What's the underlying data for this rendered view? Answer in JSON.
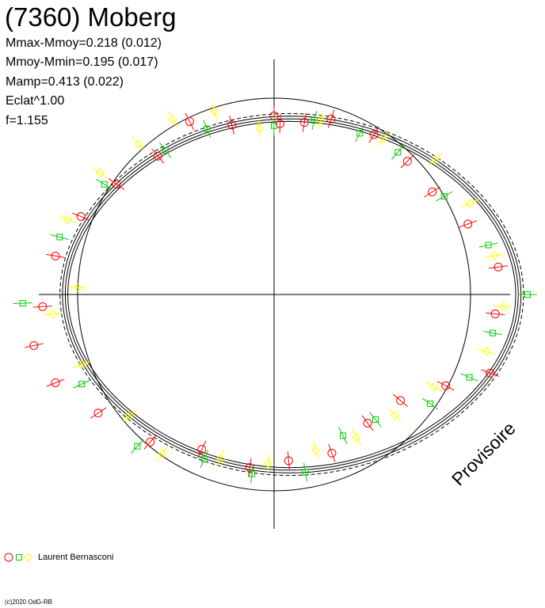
{
  "header": {
    "title": "(7360) Moberg",
    "stats": [
      "Mmax-Mmoy=0.218 (0.012)",
      "Mmoy-Mmin=0.195 (0.017)",
      "Mamp=0.413 (0.022)",
      "Eclat^1.00",
      "f=1.155"
    ]
  },
  "watermark": "Provisoire",
  "copyright": "(c)2020 OdG-RB",
  "legend": {
    "observer": "Laurent Bernasconi"
  },
  "colors": {
    "set1": "#ff0000",
    "set2": "#00cc00",
    "set3": "#ffff00",
    "model": "#000000",
    "axis": "#000000"
  },
  "chart_data": {
    "type": "scatter",
    "subtype": "polar lightcurve",
    "title": "(7360) Moberg",
    "reference_circle_radius": 1.0,
    "model_radius_range": [
      0.82,
      1.23
    ],
    "series": [
      {
        "marker": "circle",
        "color": "#ff0000",
        "points": [
          {
            "angle_deg": 90,
            "r": 0.91
          },
          {
            "angle_deg": 88,
            "r": 0.87
          },
          {
            "angle_deg": 80,
            "r": 0.89
          },
          {
            "angle_deg": 72,
            "r": 0.94
          },
          {
            "angle_deg": 58,
            "r": 0.96
          },
          {
            "angle_deg": 45,
            "r": 0.96
          },
          {
            "angle_deg": 33,
            "r": 0.96
          },
          {
            "angle_deg": 20,
            "r": 1.05
          },
          {
            "angle_deg": 7,
            "r": 1.15
          },
          {
            "angle_deg": -5,
            "r": 1.13
          },
          {
            "angle_deg": -20,
            "r": 1.17
          },
          {
            "angle_deg": -28,
            "r": 0.99
          },
          {
            "angle_deg": -40,
            "r": 0.84
          },
          {
            "angle_deg": -54,
            "r": 0.81
          },
          {
            "angle_deg": -70,
            "r": 0.86
          },
          {
            "angle_deg": -85,
            "r": 0.85
          },
          {
            "angle_deg": -98,
            "r": 0.89
          },
          {
            "angle_deg": -115,
            "r": 0.87
          },
          {
            "angle_deg": -130,
            "r": 0.98
          },
          {
            "angle_deg": -146,
            "r": 1.08
          },
          {
            "angle_deg": -158,
            "r": 1.2
          },
          {
            "angle_deg": -168,
            "r": 1.25
          },
          {
            "angle_deg": -177,
            "r": 1.18
          },
          {
            "angle_deg": 170,
            "r": 1.13
          },
          {
            "angle_deg": 158,
            "r": 1.06
          },
          {
            "angle_deg": 145,
            "r": 0.98
          },
          {
            "angle_deg": 130,
            "r": 0.92
          },
          {
            "angle_deg": 116,
            "r": 0.98
          },
          {
            "angle_deg": 104,
            "r": 0.89
          }
        ]
      },
      {
        "marker": "square",
        "color": "#00cc00",
        "points": [
          {
            "angle_deg": 90,
            "r": 0.86
          },
          {
            "angle_deg": 77,
            "r": 0.91
          },
          {
            "angle_deg": 62,
            "r": 0.93
          },
          {
            "angle_deg": 49,
            "r": 0.96
          },
          {
            "angle_deg": 30,
            "r": 1.0
          },
          {
            "angle_deg": 13,
            "r": 1.12
          },
          {
            "angle_deg": 0,
            "r": 1.29
          },
          {
            "angle_deg": -10,
            "r": 1.13
          },
          {
            "angle_deg": -23,
            "r": 1.08
          },
          {
            "angle_deg": -35,
            "r": 0.97
          },
          {
            "angle_deg": -51,
            "r": 0.82
          },
          {
            "angle_deg": -64,
            "r": 0.8
          },
          {
            "angle_deg": -80,
            "r": 0.92
          },
          {
            "angle_deg": -97,
            "r": 0.92
          },
          {
            "angle_deg": -113,
            "r": 0.91
          },
          {
            "angle_deg": -132,
            "r": 1.04
          },
          {
            "angle_deg": -155,
            "r": 1.08
          },
          {
            "angle_deg": -178,
            "r": 1.28
          },
          {
            "angle_deg": 165,
            "r": 1.13
          },
          {
            "angle_deg": 147,
            "r": 1.03
          },
          {
            "angle_deg": 127,
            "r": 0.92
          },
          {
            "angle_deg": 112,
            "r": 0.91
          }
        ]
      },
      {
        "marker": "diamond",
        "color": "#ffff00",
        "points": [
          {
            "angle_deg": 95,
            "r": 0.85
          },
          {
            "angle_deg": 75,
            "r": 0.92
          },
          {
            "angle_deg": 55,
            "r": 0.97
          },
          {
            "angle_deg": 40,
            "r": 1.07
          },
          {
            "angle_deg": 25,
            "r": 1.1
          },
          {
            "angle_deg": 10,
            "r": 1.14
          },
          {
            "angle_deg": -3,
            "r": 1.17
          },
          {
            "angle_deg": -15,
            "r": 1.12
          },
          {
            "angle_deg": -30,
            "r": 0.94
          },
          {
            "angle_deg": -45,
            "r": 0.87
          },
          {
            "angle_deg": -60,
            "r": 0.84
          },
          {
            "angle_deg": -75,
            "r": 0.82
          },
          {
            "angle_deg": -92,
            "r": 0.86
          },
          {
            "angle_deg": -108,
            "r": 0.88
          },
          {
            "angle_deg": -125,
            "r": 0.99
          },
          {
            "angle_deg": -140,
            "r": 0.96
          },
          {
            "angle_deg": -160,
            "r": 1.04
          },
          {
            "angle_deg": -175,
            "r": 1.13
          },
          {
            "angle_deg": 178,
            "r": 1.0
          },
          {
            "angle_deg": 160,
            "r": 1.12
          },
          {
            "angle_deg": 145,
            "r": 1.08
          },
          {
            "angle_deg": 132,
            "r": 1.03
          },
          {
            "angle_deg": 120,
            "r": 1.03
          },
          {
            "angle_deg": 108,
            "r": 0.98
          }
        ]
      }
    ]
  }
}
